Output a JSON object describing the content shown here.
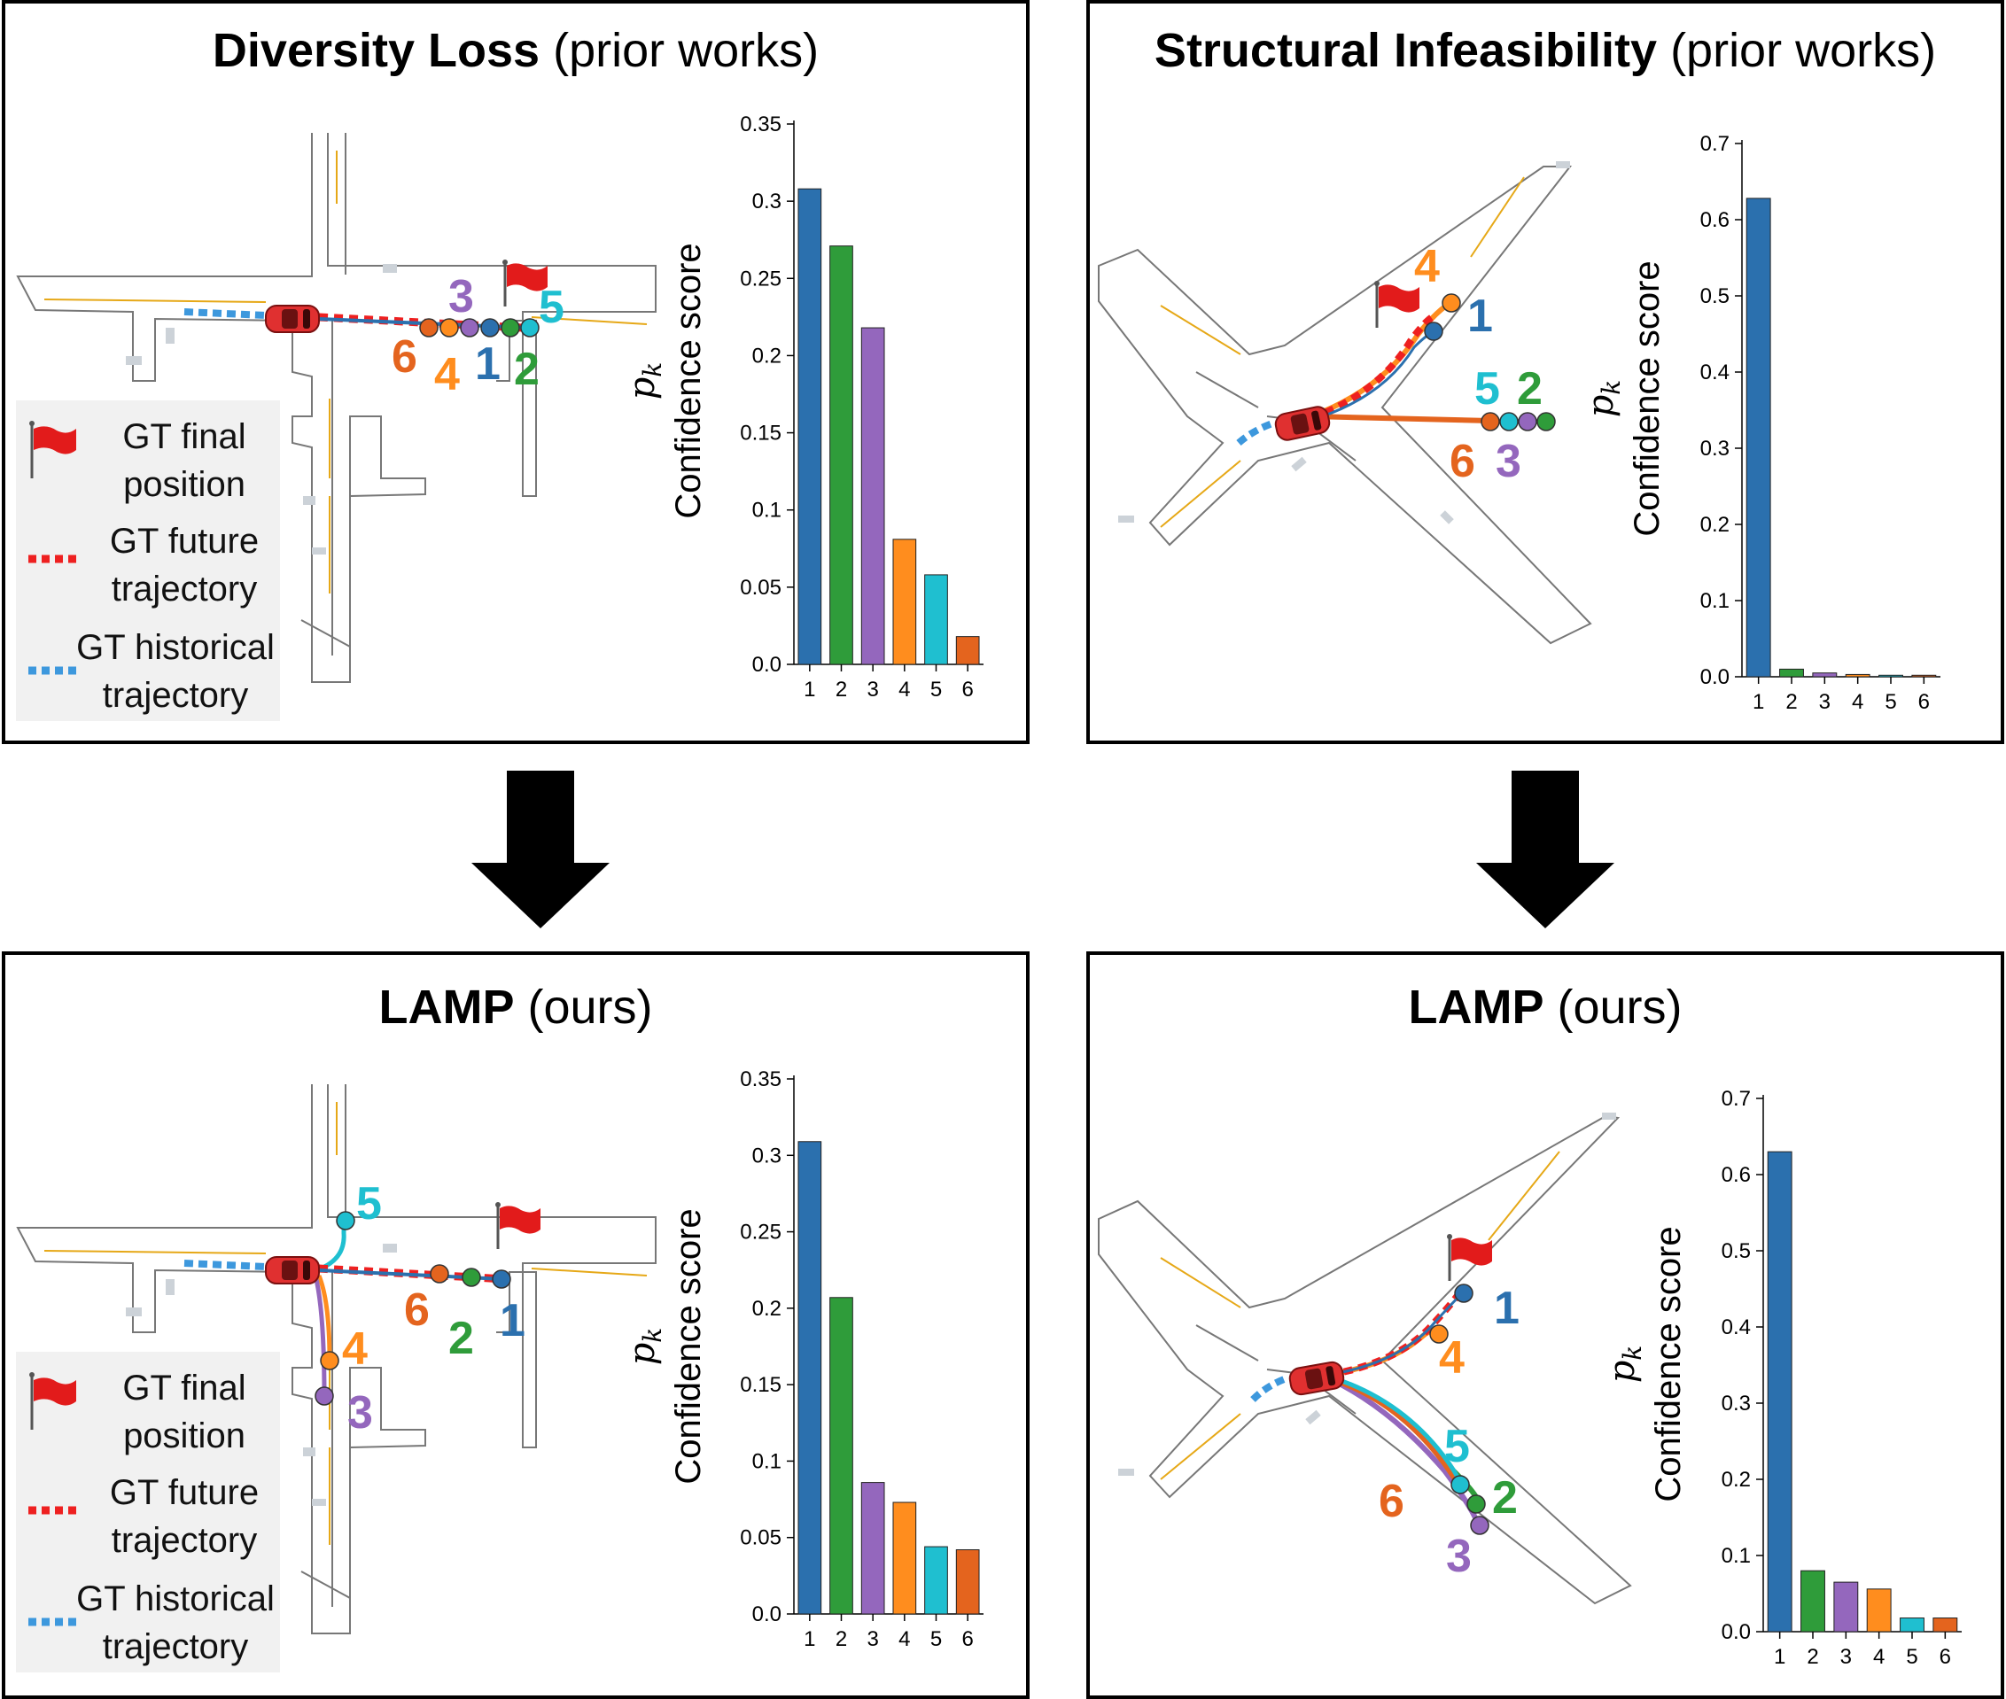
{
  "colors": {
    "c1": "#2b70ae",
    "c2": "#2f9c3a",
    "c3": "#9467bd",
    "c4": "#ff8d1e",
    "c5": "#1fbfd0",
    "c6": "#e4641e",
    "gt_future": "#ee2020",
    "gt_history": "#3d98dd",
    "road": "#777777",
    "lane_yellow": "#e6a817"
  },
  "panels": {
    "top_left": {
      "title_bold": "Diversity Loss",
      "title_rest": " (prior works)"
    },
    "top_right": {
      "title_bold": "Structural Infeasibility",
      "title_rest": " (prior works)"
    },
    "bottom_left": {
      "title_bold": "LAMP",
      "title_rest": " (ours)"
    },
    "bottom_right": {
      "title_bold": "LAMP",
      "title_rest": " (ours)"
    }
  },
  "legend": {
    "final_position_line1": "GT final",
    "final_position_line2": "position",
    "future_line1": "GT future",
    "future_line2": "trajectory",
    "history_line1": "GT historical",
    "history_line2": "trajectory"
  },
  "mode_labels": [
    "1",
    "2",
    "3",
    "4",
    "5",
    "6"
  ],
  "chart_data": [
    {
      "type": "bar",
      "panel": "Diversity Loss (prior works)",
      "ylabel": "Confidence score",
      "ylabel_symbol": "p",
      "ylabel_subscript": "k",
      "categories": [
        "1",
        "2",
        "3",
        "4",
        "5",
        "6"
      ],
      "values": [
        0.308,
        0.271,
        0.218,
        0.081,
        0.058,
        0.018
      ],
      "ylim": [
        0,
        0.35
      ],
      "yticks": [
        "0.0",
        "0.05",
        "0.1",
        "0.15",
        "0.2",
        "0.25",
        "0.3",
        "0.35"
      ],
      "bar_colors": [
        "#2b70ae",
        "#2f9c3a",
        "#9467bd",
        "#ff8d1e",
        "#1fbfd0",
        "#e4641e"
      ],
      "grid": false
    },
    {
      "type": "bar",
      "panel": "Structural Infeasibility (prior works)",
      "ylabel": "Confidence score",
      "ylabel_symbol": "p",
      "ylabel_subscript": "k",
      "categories": [
        "1",
        "2",
        "3",
        "4",
        "5",
        "6"
      ],
      "values": [
        0.628,
        0.01,
        0.005,
        0.003,
        0.002,
        0.002
      ],
      "ylim": [
        0,
        0.7
      ],
      "yticks": [
        "0.0",
        "0.1",
        "0.2",
        "0.3",
        "0.4",
        "0.5",
        "0.6",
        "0.7"
      ],
      "bar_colors": [
        "#2b70ae",
        "#2f9c3a",
        "#9467bd",
        "#ff8d1e",
        "#1fbfd0",
        "#e4641e"
      ],
      "grid": false
    },
    {
      "type": "bar",
      "panel": "LAMP (ours) left",
      "ylabel": "Confidence score",
      "ylabel_symbol": "p",
      "ylabel_subscript": "k",
      "categories": [
        "1",
        "2",
        "3",
        "4",
        "5",
        "6"
      ],
      "values": [
        0.309,
        0.207,
        0.086,
        0.073,
        0.044,
        0.042
      ],
      "ylim": [
        0,
        0.35
      ],
      "yticks": [
        "0.0",
        "0.05",
        "0.1",
        "0.15",
        "0.2",
        "0.25",
        "0.3",
        "0.35"
      ],
      "bar_colors": [
        "#2b70ae",
        "#2f9c3a",
        "#9467bd",
        "#ff8d1e",
        "#1fbfd0",
        "#e4641e"
      ],
      "grid": false
    },
    {
      "type": "bar",
      "panel": "LAMP (ours) right",
      "ylabel": "Confidence score",
      "ylabel_symbol": "p",
      "ylabel_subscript": "k",
      "categories": [
        "1",
        "2",
        "3",
        "4",
        "5",
        "6"
      ],
      "values": [
        0.63,
        0.08,
        0.065,
        0.056,
        0.018,
        0.018
      ],
      "ylim": [
        0,
        0.7
      ],
      "yticks": [
        "0.0",
        "0.1",
        "0.2",
        "0.3",
        "0.4",
        "0.5",
        "0.6",
        "0.7"
      ],
      "bar_colors": [
        "#2b70ae",
        "#2f9c3a",
        "#9467bd",
        "#ff8d1e",
        "#1fbfd0",
        "#e4641e"
      ],
      "grid": false
    }
  ]
}
